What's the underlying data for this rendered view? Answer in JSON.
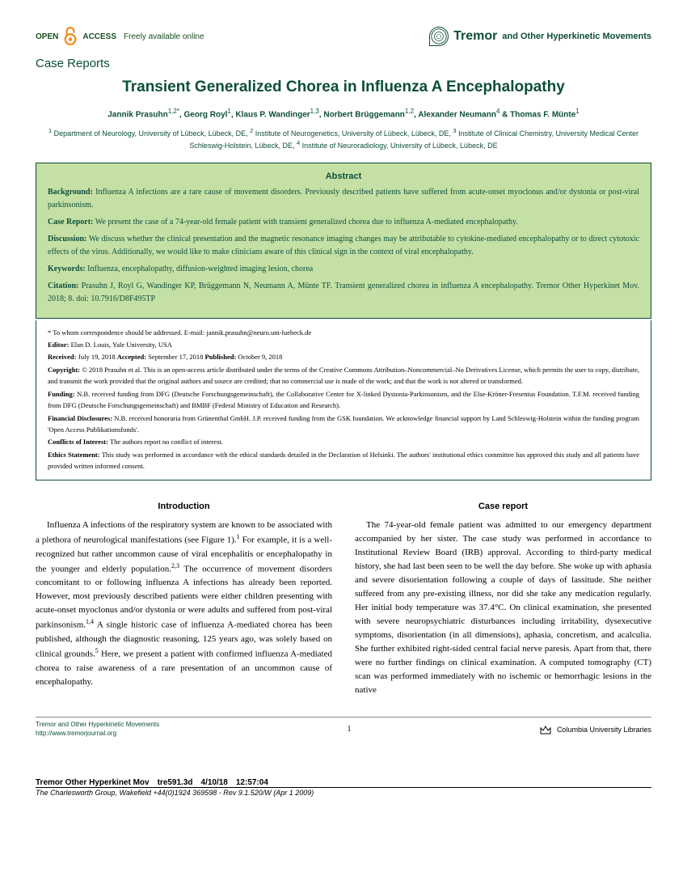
{
  "header": {
    "open_access_text": "Freely available online",
    "open_access_label": "OPEN",
    "access_word": "ACCESS",
    "journal_main": "Tremor",
    "journal_rest": "and Other Hyperkinetic Movements"
  },
  "section_label": "Case Reports",
  "title": "Transient Generalized Chorea in Influenza A Encephalopathy",
  "authors_html": "Jannik Prasuhn<sup>1,2*</sup>, Georg Royl<sup>1</sup>, Klaus P. Wandinger<sup>1,3</sup>, Norbert Brüggemann<sup>1,2</sup>, Alexander Neumann<sup>4</sup> & Thomas F. Münte<sup>1</sup>",
  "affiliations": "<sup>1</sup> Department of Neurology, University of Lübeck, Lübeck, DE, <sup>2</sup> Institute of Neurogenetics, University of Lübeck, Lübeck, DE, <sup>3</sup> Institute of Clinical Chemistry, University Medical Center Schleswig-Holstein, Lübeck, DE, <sup>4</sup> Institute of Neuroradiology, University of Lübeck, Lübeck, DE",
  "abstract": {
    "heading": "Abstract",
    "background_label": "Background:",
    "background": "Influenza A infections are a rare cause of movement disorders. Previously described patients have suffered from acute-onset myoclonus and/or dystonia or post-viral parkinsonism.",
    "case_label": "Case Report:",
    "case": "We present the case of a 74-year-old female patient with transient generalized chorea due to influenza A-mediated encephalopathy.",
    "discussion_label": "Discussion:",
    "discussion": "We discuss whether the clinical presentation and the magnetic resonance imaging changes may be attributable to cytokine-mediated encephalopathy or to direct cytotoxic effects of the virus. Additionally, we would like to make clinicians aware of this clinical sign in the context of viral encephalopathy.",
    "keywords_label": "Keywords:",
    "keywords": "Influenza, encephalopathy, diffusion-weighted imaging lesion, chorea",
    "citation_label": "Citation:",
    "citation": "Prasuhn J, Royl G, Wandinger KP, Brüggemann N, Neumann A, Münte TF. Transient generalized chorea in influenza A encephalopathy. Tremor Other Hyperkinet Mov. 2018; 8. doi: 10.7916/D8F495TP"
  },
  "meta": {
    "correspondence": "* To whom correspondence should be addressed. E-mail: jannik.prasuhn@neuro.uni-luebeck.de",
    "editor_label": "Editor:",
    "editor": "Elan D. Louis, Yale University, USA",
    "received_label": "Received:",
    "received": "July 19, 2018",
    "accepted_label": "Accepted:",
    "accepted": "September 17, 2018",
    "published_label": "Published:",
    "published": "October 9, 2018",
    "copyright_label": "Copyright:",
    "copyright": "© 2018 Prasuhn et al. This is an open-access article distributed under the terms of the Creative Commons Attribution–Noncommercial–No Derivatives License, which permits the user to copy, distribute, and transmit the work provided that the original authors and source are credited; that no commercial use is made of the work; and that the work is not altered or transformed.",
    "funding_label": "Funding:",
    "funding": "N.B. received funding from DFG (Deutsche Forschungsgemeinschaft), the Collaborative Center for X-linked Dystonia-Parkinsonism, and the Else-Kröner-Fresenius Foundation. T.F.M. received funding from DFG (Deutsche Forschungsgemeinschaft) and BMBF (Federal Ministry of Education and Research).",
    "disclosures_label": "Financial Disclosures:",
    "disclosures": "N.B. received honoraria from Grünenthal GmbH. J.P. received funding from the GSK foundation. We acknowledge financial support by Land Schleswig-Holstein within the funding program 'Open Access Publikationsfonds'.",
    "coi_label": "Conflicts of Interest:",
    "coi": "The authors report no conflict of interest.",
    "ethics_label": "Ethics Statement:",
    "ethics": "This study was performed in accordance with the ethical standards detailed in the Declaration of Helsinki. The authors' institutional ethics committee has approved this study and all patients have provided written informed consent."
  },
  "body": {
    "intro_heading": "Introduction",
    "intro_text": "Influenza A infections of the respiratory system are known to be associated with a plethora of neurological manifestations (see Figure 1).<sup>1</sup> For example, it is a well-recognized but rather uncommon cause of viral encephalitis or encephalopathy in the younger and elderly population.<sup>2,3</sup> The occurrence of movement disorders concomitant to or following influenza A infections has already been reported. However, most previously described patients were either children presenting with acute-onset myoclonus and/or dystonia or were adults and suffered from post-viral parkinsonism.<sup>1,4</sup> A single historic case of influenza A-mediated chorea has been published, although the diagnostic reasoning, 125 years ago, was solely based on clinical grounds.<sup>5</sup> Here, we present a patient with confirmed influenza A-mediated chorea to raise awareness of a rare presentation of an uncommon cause of encephalopathy.",
    "case_heading": "Case report",
    "case_text": "The 74-year-old female patient was admitted to our emergency department accompanied by her sister. The case study was performed in accordance to Institutional Review Board (IRB) approval. According to third-party medical history, she had last been seen to be well the day before. She woke up with aphasia and severe disorientation following a couple of days of lassitude. She neither suffered from any pre-existing illness, nor did she take any medication regularly. Her initial body temperature was 37.4°C. On clinical examination, she presented with severe neuropsychiatric disturbances including irritability, dysexecutive symptoms, disorientation (in all dimensions), aphasia, concretism, and acalculia. She further exhibited right-sided central facial nerve paresis. Apart from that, there were no further findings on clinical examination. A computed tomography (CT) scan was performed immediately with no ischemic or hemorrhagic lesions in the native"
  },
  "footer": {
    "journal_name": "Tremor and Other Hyperkinetic Movements",
    "journal_url": "http://www.tremorjournal.org",
    "page_num": "1",
    "publisher": "Columbia University Libraries"
  },
  "bottom": {
    "line1": "Tremor Other Hyperkinet Mov tre591.3d 4/10/18 12:57:04",
    "line2": "The Charlesworth Group, Wakefield +44(0)1924 369598 - Rev 9.1.520/W (Apr 1 2009)"
  }
}
